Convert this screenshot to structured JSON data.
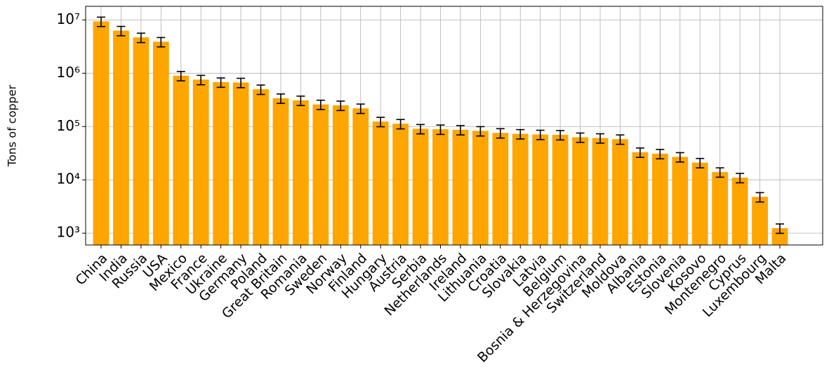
{
  "chart_data": {
    "type": "bar",
    "y_label": "Tons of copper",
    "log_scale": true,
    "grid": true,
    "color": "#ffa500",
    "categories": [
      "China",
      "India",
      "Russia",
      "USA",
      "Mexico",
      "France",
      "Ukraine",
      "Germany",
      "Poland",
      "Great Britain",
      "Romania",
      "Sweden",
      "Norway",
      "Finland",
      "Hungary",
      "Austria",
      "Serbia",
      "Netherlands",
      "Ireland",
      "Lithuania",
      "Croatia",
      "Slovakia",
      "Latvia",
      "Belgium",
      "Bosnia & Herzegovina",
      "Switzerland",
      "Moldova",
      "Albania",
      "Estonia",
      "Slovenia",
      "Kosovo",
      "Montenegro",
      "Cyprus",
      "Luxembourg",
      "Malta"
    ],
    "values": [
      9400000,
      6300000,
      4700000,
      3900000,
      900000,
      760000,
      680000,
      670000,
      500000,
      340000,
      310000,
      260000,
      250000,
      220000,
      124000,
      113000,
      91000,
      89000,
      87000,
      83000,
      76000,
      73000,
      71000,
      70000,
      63000,
      61000,
      58000,
      33000,
      31000,
      27000,
      21000,
      14000,
      11000,
      4800,
      1240
    ],
    "errors": [
      1880000,
      1260000,
      940000,
      780000,
      180000,
      152000,
      136000,
      134000,
      100000,
      68000,
      62000,
      52000,
      50000,
      44000,
      24800,
      22600,
      18200,
      17800,
      17400,
      16600,
      15200,
      14600,
      14200,
      14000,
      12600,
      12200,
      11600,
      6600,
      6200,
      5400,
      4200,
      2800,
      2200,
      960,
      248
    ],
    "ylim": [
      600,
      18000000
    ],
    "yticks": [
      {
        "value": 1000,
        "label": "10³"
      },
      {
        "value": 10000,
        "label": "10⁴"
      },
      {
        "value": 100000,
        "label": "10⁵"
      },
      {
        "value": 1000000,
        "label": "10⁶"
      },
      {
        "value": 10000000,
        "label": "10⁷"
      }
    ]
  }
}
